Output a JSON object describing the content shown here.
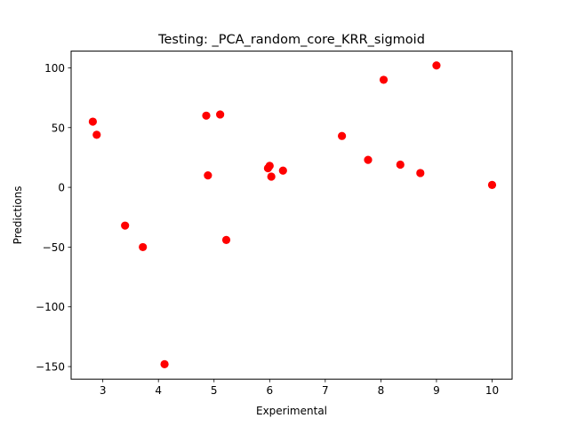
{
  "chart_data": {
    "type": "scatter",
    "title": "Testing: _PCA_random_core_KRR_sigmoid",
    "xlabel": "Experimental",
    "ylabel": "Predictions",
    "xlim": [
      2.43,
      10.36
    ],
    "ylim": [
      -160.5,
      114.0
    ],
    "xticks": [
      3,
      4,
      5,
      6,
      7,
      8,
      9,
      10
    ],
    "yticks": [
      -150,
      -100,
      -50,
      0,
      50,
      100
    ],
    "xtick_labels": [
      "3",
      "4",
      "5",
      "6",
      "7",
      "8",
      "9",
      "10"
    ],
    "ytick_labels": [
      "−150",
      "−100",
      "−50",
      "0",
      "50",
      "100"
    ],
    "marker_color": "#ff0000",
    "grid": false,
    "points": [
      {
        "x": 2.82,
        "y": 55
      },
      {
        "x": 2.89,
        "y": 44
      },
      {
        "x": 3.4,
        "y": -32
      },
      {
        "x": 3.72,
        "y": -50
      },
      {
        "x": 4.11,
        "y": -148
      },
      {
        "x": 4.86,
        "y": 60
      },
      {
        "x": 4.89,
        "y": 10
      },
      {
        "x": 5.11,
        "y": 61
      },
      {
        "x": 5.22,
        "y": -44
      },
      {
        "x": 5.97,
        "y": 16
      },
      {
        "x": 6.0,
        "y": 18
      },
      {
        "x": 6.03,
        "y": 9
      },
      {
        "x": 6.24,
        "y": 14
      },
      {
        "x": 7.3,
        "y": 43
      },
      {
        "x": 7.77,
        "y": 23
      },
      {
        "x": 8.05,
        "y": 90
      },
      {
        "x": 8.35,
        "y": 19
      },
      {
        "x": 8.71,
        "y": 12
      },
      {
        "x": 9.0,
        "y": 102
      },
      {
        "x": 10.0,
        "y": 2
      }
    ]
  }
}
